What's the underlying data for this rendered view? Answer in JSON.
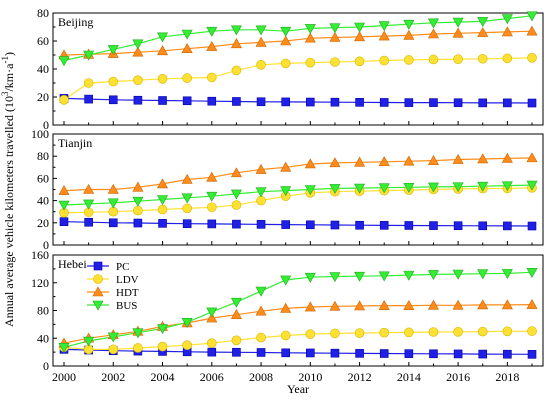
{
  "chart_data": {
    "type": "line",
    "x": [
      2000,
      2001,
      2002,
      2003,
      2004,
      2005,
      2006,
      2007,
      2008,
      2009,
      2010,
      2011,
      2012,
      2013,
      2014,
      2015,
      2016,
      2017,
      2018,
      2019
    ],
    "x_ticks": [
      2000,
      2002,
      2004,
      2006,
      2008,
      2010,
      2012,
      2014,
      2016,
      2018
    ],
    "xlabel": "Year",
    "ylabel": "Annual average vehicle kilometers travelled (10",
    "ylabel_sup": "3",
    "ylabel_end": "/km·a",
    "ylabel_sup2": "-1",
    "ylabel_close": ")",
    "xlim": [
      2000,
      2019
    ],
    "legend": {
      "placement": "inside bottom panel, upper-left",
      "entries": [
        "PC",
        "LDV",
        "HDT",
        "BUS"
      ]
    },
    "series_colors": {
      "PC": "#1f1fe6",
      "LDV": "#ffe033",
      "HDT": "#ff8c1a",
      "BUS": "#33ee33"
    },
    "panels": [
      {
        "title": "Beijing",
        "ylim": [
          0,
          80
        ],
        "yticks": [
          0,
          20,
          40,
          60,
          80
        ],
        "series": [
          {
            "name": "PC",
            "values": [
              19,
              18.5,
              18,
              17.7,
              17.5,
              17.3,
              17,
              16.8,
              16.6,
              16.5,
              16.4,
              16.3,
              16.2,
              16.1,
              16,
              16,
              15.9,
              15.8,
              15.8,
              15.7
            ]
          },
          {
            "name": "LDV",
            "values": [
              18,
              30,
              31,
              32,
              33,
              33.5,
              34,
              39,
              43,
              44,
              44.5,
              45,
              45.5,
              46,
              46.5,
              46.8,
              47,
              47.3,
              47.6,
              48
            ]
          },
          {
            "name": "HDT",
            "values": [
              50,
              50.5,
              51,
              52,
              53,
              54.5,
              56,
              58,
              59,
              60,
              62,
              62.5,
              63,
              63.5,
              64,
              65,
              65.5,
              66,
              66.5,
              67
            ]
          },
          {
            "name": "BUS",
            "values": [
              46,
              50,
              54,
              58,
              63,
              65,
              67,
              68,
              68,
              67,
              69,
              69.5,
              70,
              71,
              72,
              73,
              73.5,
              74,
              76,
              78
            ]
          }
        ]
      },
      {
        "title": "Tianjin",
        "ylim": [
          0,
          100
        ],
        "yticks": [
          0,
          20,
          40,
          60,
          80,
          100
        ],
        "series": [
          {
            "name": "PC",
            "values": [
              21,
              20.5,
              20,
              19.8,
              19.5,
              19.2,
              19,
              18.8,
              18.6,
              18.4,
              18.2,
              18,
              17.8,
              17.7,
              17.6,
              17.5,
              17.4,
              17.3,
              17.2,
              17.1
            ]
          },
          {
            "name": "LDV",
            "values": [
              29,
              29.5,
              30,
              31,
              32,
              33,
              34,
              36,
              40,
              44,
              47,
              48,
              48.5,
              49,
              49.5,
              50,
              50.5,
              50.8,
              51,
              51.5
            ]
          },
          {
            "name": "HDT",
            "values": [
              49,
              50,
              50,
              52,
              55,
              59,
              61,
              65,
              68,
              70,
              73,
              74,
              74.5,
              75,
              75.5,
              76,
              77,
              77.5,
              78,
              78.5
            ]
          },
          {
            "name": "BUS",
            "values": [
              36,
              37,
              38,
              39.5,
              41,
              42.5,
              44,
              46,
              48,
              49,
              50,
              51,
              51.3,
              51.6,
              52,
              52.3,
              52.6,
              53,
              53.5,
              54
            ]
          }
        ]
      },
      {
        "title": "Hebei",
        "ylim": [
          0,
          160
        ],
        "yticks": [
          0,
          40,
          80,
          120,
          160
        ],
        "series": [
          {
            "name": "PC",
            "values": [
              24,
              23,
              22,
              21.5,
              21,
              20.5,
              20,
              19.8,
              19.5,
              19,
              18.8,
              18.5,
              18.2,
              18,
              17.8,
              17.6,
              17.4,
              17.2,
              17,
              16.8
            ]
          },
          {
            "name": "LDV",
            "values": [
              27,
              24,
              24,
              26,
              28,
              30,
              33,
              37,
              41,
              44,
              46,
              47,
              47.5,
              48,
              48.5,
              49,
              49.3,
              49.6,
              50,
              50.3
            ]
          },
          {
            "name": "HDT",
            "values": [
              33,
              40,
              45,
              50,
              57,
              62,
              69,
              74,
              79,
              83,
              85,
              86,
              86.5,
              87,
              87,
              87.5,
              87.5,
              88,
              88,
              88.5
            ]
          },
          {
            "name": "BUS",
            "values": [
              27,
              36,
              42,
              48,
              54,
              63,
              78,
              92,
              108,
              124,
              128,
              129,
              129.5,
              130,
              131,
              132,
              132.5,
              133,
              133.5,
              135
            ]
          }
        ]
      }
    ]
  }
}
